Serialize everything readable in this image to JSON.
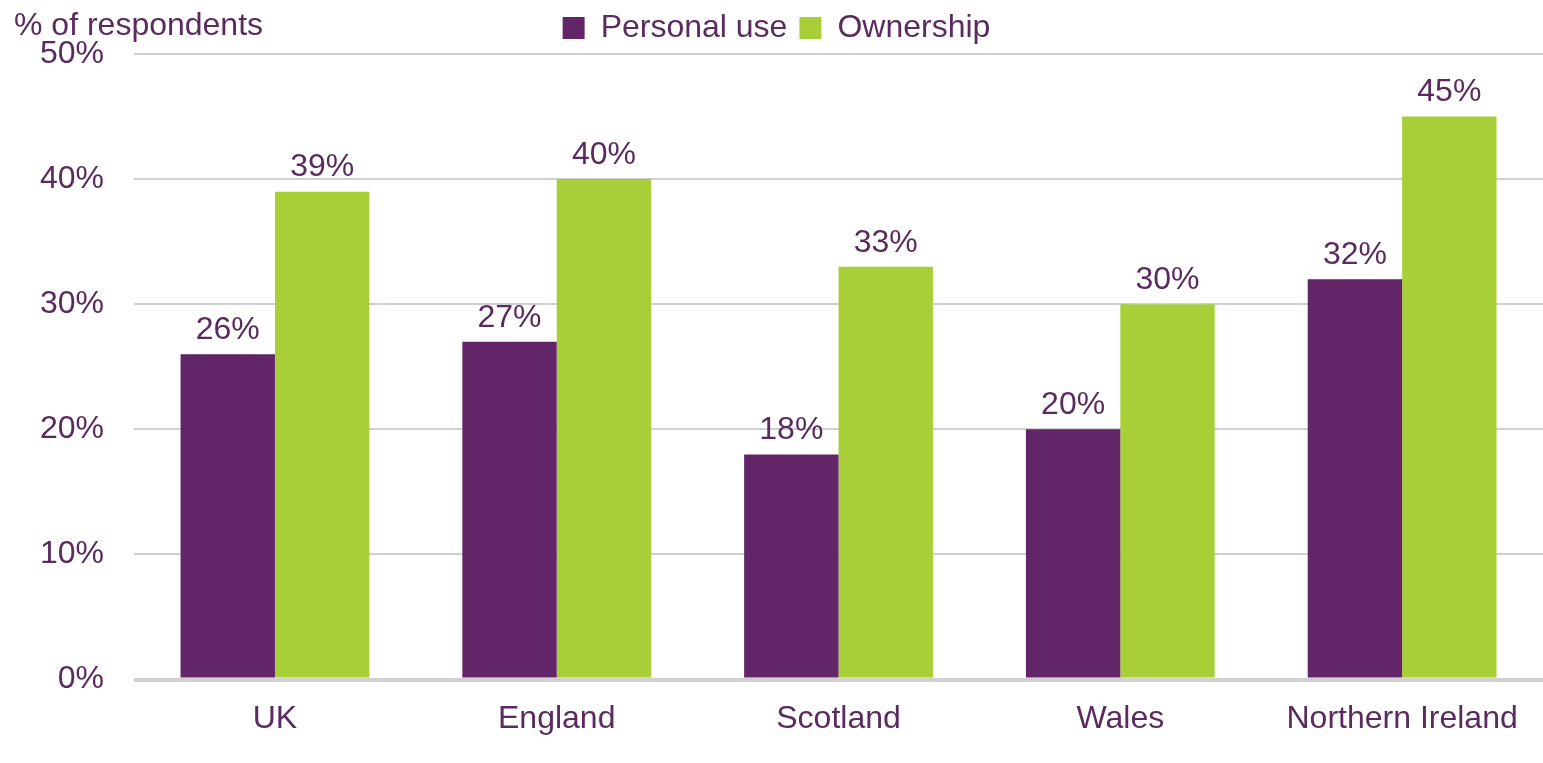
{
  "chart_data": {
    "type": "bar",
    "ylabel": "% of respondents",
    "categories": [
      "UK",
      "England",
      "Scotland",
      "Wales",
      "Northern Ireland"
    ],
    "series": [
      {
        "name": "Personal use",
        "color": "#622567",
        "values": [
          26,
          27,
          18,
          20,
          32
        ],
        "value_labels": [
          "26%",
          "27%",
          "18%",
          "20%",
          "32%"
        ]
      },
      {
        "name": "Ownership",
        "color": "#a8cf38",
        "values": [
          39,
          40,
          33,
          30,
          45
        ],
        "value_labels": [
          "39%",
          "40%",
          "33%",
          "30%",
          "45%"
        ]
      }
    ],
    "ylim": [
      0,
      50
    ],
    "yticks": [
      {
        "value": 0,
        "label": "0%"
      },
      {
        "value": 10,
        "label": "10%"
      },
      {
        "value": 20,
        "label": "20%"
      },
      {
        "value": 30,
        "label": "30%"
      },
      {
        "value": 40,
        "label": "40%"
      },
      {
        "value": 50,
        "label": "50%"
      }
    ],
    "grid": "y",
    "legend": "top"
  }
}
